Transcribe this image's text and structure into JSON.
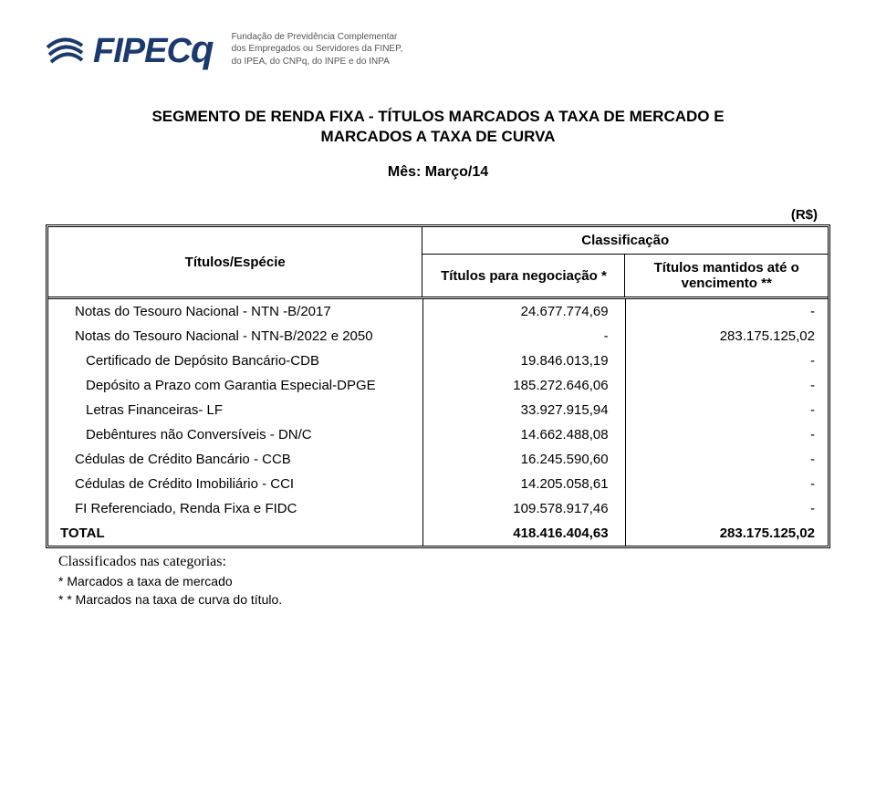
{
  "header": {
    "logo_text": "FIPEC",
    "logo_q": "q",
    "subtitle_line1": "Fundação de Previdência Complementar",
    "subtitle_line2": "dos Empregados ou Servidores da FINEP,",
    "subtitle_line3": "do IPEA, do CNPq, do INPE e do INPA"
  },
  "titles": {
    "main": "SEGMENTO DE RENDA FIXA - TÍTULOS MARCADOS A TAXA DE MERCADO E",
    "sub": "MARCADOS A TAXA DE CURVA",
    "month": "Mês: Março/14"
  },
  "table_head": {
    "especie": "Títulos/Espécie",
    "rs": "(R$)",
    "classificacao": "Classificação",
    "negociacao": "Títulos para negociação *",
    "vencimento": "Títulos mantidos até o vencimento **"
  },
  "rows": [
    {
      "label": "Notas do Tesouro Nacional - NTN -B/2017",
      "neg": "24.677.774,69",
      "venc": "-",
      "indent": "normal"
    },
    {
      "label": "Notas do Tesouro Nacional - NTN-B/2022 e 2050",
      "neg": "-",
      "venc": "283.175.125,02",
      "indent": "normal"
    },
    {
      "label": "Certificado de Depósito Bancário-CDB",
      "neg": "19.846.013,19",
      "venc": "-",
      "indent": "more"
    },
    {
      "label": "Depósito a Prazo com Garantia Especial-DPGE",
      "neg": "185.272.646,06",
      "venc": "-",
      "indent": "more"
    },
    {
      "label": "Letras Financeiras- LF",
      "neg": "33.927.915,94",
      "venc": "-",
      "indent": "more"
    },
    {
      "label": "Debêntures não Conversíveis - DN/C",
      "neg": "14.662.488,08",
      "venc": "-",
      "indent": "more"
    },
    {
      "label": "Cédulas de Crédito Bancário - CCB",
      "neg": "16.245.590,60",
      "venc": "-",
      "indent": "normal"
    },
    {
      "label": "Cédulas de Crédito Imobiliário - CCI",
      "neg": "14.205.058,61",
      "venc": "-",
      "indent": "normal"
    },
    {
      "label": "FI Referenciado, Renda Fixa e FIDC",
      "neg": "109.578.917,46",
      "venc": "-",
      "indent": "normal"
    }
  ],
  "total": {
    "label": "TOTAL",
    "neg": "418.416.404,63",
    "venc": "283.175.125,02"
  },
  "notes": {
    "cat": "Classificados nas categorias:",
    "n1": "* Marcados a taxa de mercado",
    "n2": "* * Marcados na taxa de curva do título."
  },
  "style": {
    "brand_color": "#1a3a6e",
    "text_color": "#000000",
    "subtitle_color": "#555555",
    "background": "#ffffff",
    "border_color": "#000000",
    "title_fontsize": 17,
    "body_fontsize": 15
  }
}
